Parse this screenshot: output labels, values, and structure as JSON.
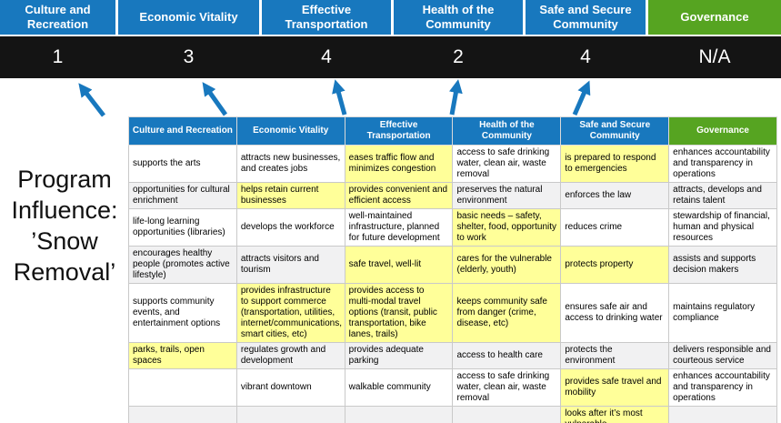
{
  "program_label": "Program Influence: ’Snow Removal’",
  "colors": {
    "header_blue": "#1878BE",
    "header_green": "#56A421",
    "score_bar": "#141414",
    "arrow": "#1878BE",
    "highlight": "#FFFF99"
  },
  "scoreboard": {
    "categories": [
      {
        "label": "Culture and Recreation",
        "score": "1",
        "color": "#1878BE"
      },
      {
        "label": "Economic Vitality",
        "score": "3",
        "color": "#1878BE"
      },
      {
        "label": "Effective Transportation",
        "score": "4",
        "color": "#1878BE"
      },
      {
        "label": "Health of the Community",
        "score": "2",
        "color": "#1878BE"
      },
      {
        "label": "Safe and Secure Community",
        "score": "4",
        "color": "#1878BE"
      },
      {
        "label": "Governance",
        "score": "N/A",
        "color": "#56A421"
      }
    ]
  },
  "table": {
    "rows": [
      [
        {
          "text": "supports the arts",
          "highlight": false
        },
        {
          "text": "attracts new businesses, and creates jobs",
          "highlight": false
        },
        {
          "text": "eases traffic flow and minimizes congestion",
          "highlight": true
        },
        {
          "text": "access to safe drinking water, clean air, waste removal",
          "highlight": false
        },
        {
          "text": "is prepared to respond to emergencies",
          "highlight": true
        },
        {
          "text": "enhances accountability and transparency in operations",
          "highlight": false
        }
      ],
      [
        {
          "text": "opportunities for cultural enrichment",
          "highlight": false
        },
        {
          "text": "helps retain current businesses",
          "highlight": true
        },
        {
          "text": "provides convenient and efficient access",
          "highlight": true
        },
        {
          "text": "preserves the natural environment",
          "highlight": false
        },
        {
          "text": "enforces the law",
          "highlight": false
        },
        {
          "text": "attracts, develops and retains talent",
          "highlight": false
        }
      ],
      [
        {
          "text": "life-long learning opportunities (libraries)",
          "highlight": false
        },
        {
          "text": "develops the workforce",
          "highlight": false
        },
        {
          "text": "well-maintained infrastructure, planned for future development",
          "highlight": false
        },
        {
          "text": "basic needs – safety, shelter, food, opportunity to work",
          "highlight": true
        },
        {
          "text": "reduces crime",
          "highlight": false
        },
        {
          "text": "stewardship of financial, human and physical resources",
          "highlight": false
        }
      ],
      [
        {
          "text": "encourages healthy people (promotes active lifestyle)",
          "highlight": false
        },
        {
          "text": "attracts visitors and tourism",
          "highlight": false
        },
        {
          "text": "safe travel, well-lit",
          "highlight": true
        },
        {
          "text": "cares for the vulnerable (elderly, youth)",
          "highlight": true
        },
        {
          "text": "protects property",
          "highlight": true
        },
        {
          "text": "assists and supports decision makers",
          "highlight": false
        }
      ],
      [
        {
          "text": "supports community events, and entertainment options",
          "highlight": false
        },
        {
          "text": "provides infrastructure to support commerce (transportation, utilities, internet/communications, smart cities, etc)",
          "highlight": true
        },
        {
          "text": "provides access to multi-modal travel options (transit, public transportation, bike lanes, trails)",
          "highlight": true
        },
        {
          "text": "keeps community safe from danger (crime, disease, etc)",
          "highlight": true
        },
        {
          "text": "ensures safe air and access to drinking water",
          "highlight": false
        },
        {
          "text": "maintains regulatory compliance",
          "highlight": false
        }
      ],
      [
        {
          "text": "parks, trails, open spaces",
          "highlight": true
        },
        {
          "text": "regulates growth and development",
          "highlight": false
        },
        {
          "text": "provides adequate parking",
          "highlight": false
        },
        {
          "text": "access to health care",
          "highlight": false
        },
        {
          "text": "protects the environment",
          "highlight": false
        },
        {
          "text": "delivers responsible and courteous service",
          "highlight": false
        }
      ],
      [
        {
          "text": "",
          "highlight": false
        },
        {
          "text": "vibrant downtown",
          "highlight": false
        },
        {
          "text": "walkable community",
          "highlight": false
        },
        {
          "text": "access to safe drinking water, clean air, waste removal",
          "highlight": false
        },
        {
          "text": "provides safe travel and mobility",
          "highlight": true
        },
        {
          "text": "enhances accountability and transparency in operations",
          "highlight": false
        }
      ],
      [
        {
          "text": "",
          "highlight": false
        },
        {
          "text": "",
          "highlight": false
        },
        {
          "text": "",
          "highlight": false
        },
        {
          "text": "",
          "highlight": false
        },
        {
          "text": "looks after it’s most vulnerable",
          "highlight": true
        },
        {
          "text": "",
          "highlight": false
        }
      ]
    ]
  }
}
